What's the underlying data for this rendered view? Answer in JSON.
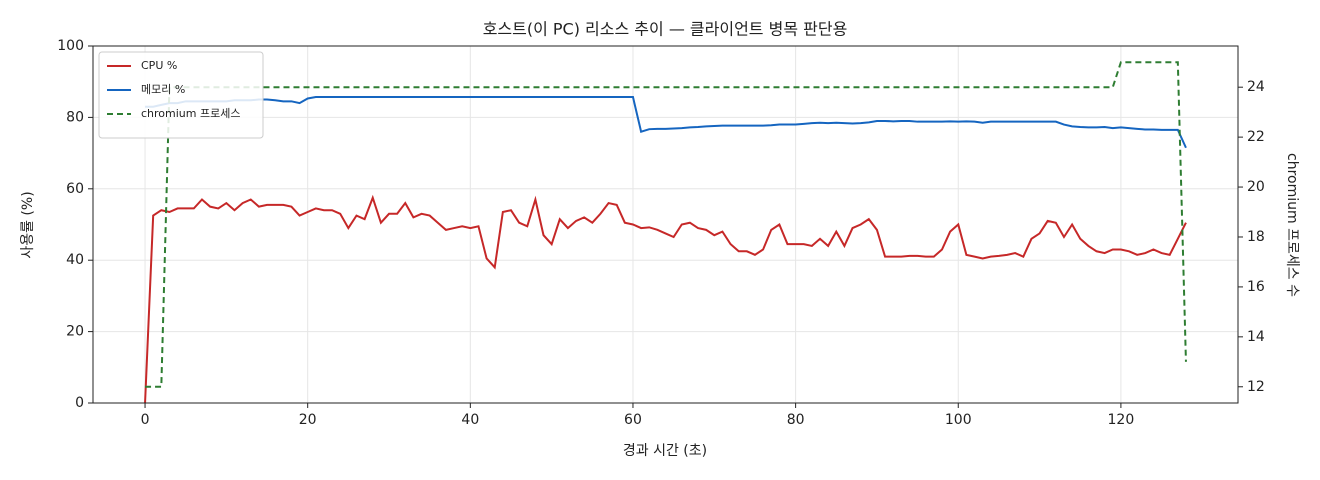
{
  "chart_data": {
    "type": "line",
    "title": "호스트(이 PC) 리소스 추이 — 클라이언트 병목 판단용",
    "xlabel": "경과 시간 (초)",
    "ylabel": "사용률 (%)",
    "y2label": "chromium 프로세스 수",
    "x": [
      0,
      1,
      2,
      3,
      4,
      5,
      6,
      7,
      8,
      9,
      10,
      11,
      12,
      13,
      14,
      15,
      16,
      17,
      18,
      19,
      20,
      21,
      22,
      23,
      24,
      25,
      26,
      27,
      28,
      29,
      30,
      31,
      32,
      33,
      34,
      35,
      36,
      37,
      38,
      39,
      40,
      41,
      42,
      43,
      44,
      45,
      46,
      47,
      48,
      49,
      50,
      51,
      52,
      53,
      54,
      55,
      56,
      57,
      58,
      59,
      60,
      61,
      62,
      63,
      64,
      65,
      66,
      67,
      68,
      69,
      70,
      71,
      72,
      73,
      74,
      75,
      76,
      77,
      78,
      79,
      80,
      81,
      82,
      83,
      84,
      85,
      86,
      87,
      88,
      89,
      90,
      91,
      92,
      93,
      94,
      95,
      96,
      97,
      98,
      99,
      100,
      101,
      102,
      103,
      104,
      105,
      106,
      107,
      108,
      109,
      110,
      111,
      112,
      113,
      114,
      115,
      116,
      117,
      118,
      119,
      120,
      121,
      122,
      123,
      124,
      125,
      126,
      127,
      128
    ],
    "series": [
      {
        "name": "CPU %",
        "color": "#c62828",
        "values": [
          0,
          52.5,
          54,
          53.5,
          54.5,
          54.5,
          54.5,
          57,
          55,
          54.5,
          56,
          54,
          56,
          57,
          55,
          55.5,
          55.5,
          55.5,
          55,
          52.5,
          53.5,
          54.5,
          54,
          54,
          53,
          49,
          52.5,
          51.5,
          57.5,
          50.5,
          53,
          53,
          56,
          52,
          53,
          52.5,
          50.5,
          48.5,
          49,
          49.5,
          49,
          49.5,
          40.5,
          38,
          53.5,
          54,
          50.5,
          49.5,
          57,
          47,
          44.5,
          51.5,
          49,
          51,
          52,
          50.5,
          53,
          56,
          55.5,
          50.5,
          50,
          49,
          49.2,
          48.5,
          47.5,
          46.5,
          50,
          50.5,
          49,
          48.5,
          47,
          48,
          44.5,
          42.5,
          42.5,
          41.5,
          43,
          48.5,
          50,
          44.5,
          44.5,
          44.5,
          44,
          46,
          44,
          48,
          44,
          49,
          50,
          51.5,
          48.5,
          41,
          41,
          41,
          41.2,
          41.2,
          41,
          41,
          43,
          48,
          50,
          41.5,
          41,
          40.5,
          41,
          41.2,
          41.5,
          42,
          41,
          46,
          47.5,
          51,
          50.5,
          46.5,
          50,
          46,
          44,
          42.5,
          42,
          43,
          43,
          42.5,
          41.5,
          42,
          43,
          42,
          41.5,
          46,
          50.5
        ]
      },
      {
        "name": "메모리 %",
        "color": "#1565c0",
        "values": [
          83,
          83,
          83.5,
          84,
          84,
          84.5,
          84.5,
          84.5,
          84.5,
          84.5,
          84.5,
          84.8,
          84.8,
          84.8,
          85,
          85,
          84.8,
          84.5,
          84.5,
          84,
          85.3,
          85.7,
          85.7,
          85.7,
          85.7,
          85.7,
          85.7,
          85.7,
          85.7,
          85.7,
          85.7,
          85.7,
          85.7,
          85.7,
          85.7,
          85.7,
          85.7,
          85.7,
          85.7,
          85.7,
          85.7,
          85.7,
          85.7,
          85.7,
          85.7,
          85.7,
          85.7,
          85.7,
          85.7,
          85.7,
          85.7,
          85.7,
          85.7,
          85.7,
          85.7,
          85.7,
          85.7,
          85.7,
          85.7,
          85.7,
          85.7,
          76,
          76.7,
          76.8,
          76.8,
          76.9,
          77,
          77.2,
          77.3,
          77.5,
          77.6,
          77.7,
          77.7,
          77.7,
          77.7,
          77.7,
          77.7,
          77.8,
          78,
          78,
          78,
          78.2,
          78.4,
          78.5,
          78.4,
          78.5,
          78.4,
          78.3,
          78.4,
          78.6,
          79,
          79,
          78.9,
          79,
          79,
          78.8,
          78.8,
          78.8,
          78.8,
          78.9,
          78.8,
          78.9,
          78.8,
          78.5,
          78.8,
          78.8,
          78.8,
          78.8,
          78.8,
          78.8,
          78.8,
          78.8,
          78.8,
          78,
          77.5,
          77.3,
          77.2,
          77.2,
          77.3,
          77,
          77.2,
          77,
          76.8,
          76.6,
          76.6,
          76.5,
          76.5,
          76.5,
          71.5
        ]
      },
      {
        "name": "chromium 프로세스",
        "color": "#2e7d32",
        "dashed": true,
        "axis": "y2",
        "x": [
          0,
          2,
          3,
          119,
          120,
          127,
          128
        ],
        "values": [
          12,
          12,
          24,
          24,
          25,
          25,
          13
        ]
      }
    ],
    "xlim": [
      -6.4,
      134.4
    ],
    "xticks": [
      0,
      20,
      40,
      60,
      80,
      100,
      120
    ],
    "ylim": [
      0,
      100
    ],
    "yticks": [
      0,
      20,
      40,
      60,
      80,
      100
    ],
    "y2lim": [
      11.35,
      25.65
    ],
    "y2ticks": [
      12,
      14,
      16,
      18,
      20,
      22,
      24
    ],
    "grid": true,
    "legend": "upper left"
  }
}
